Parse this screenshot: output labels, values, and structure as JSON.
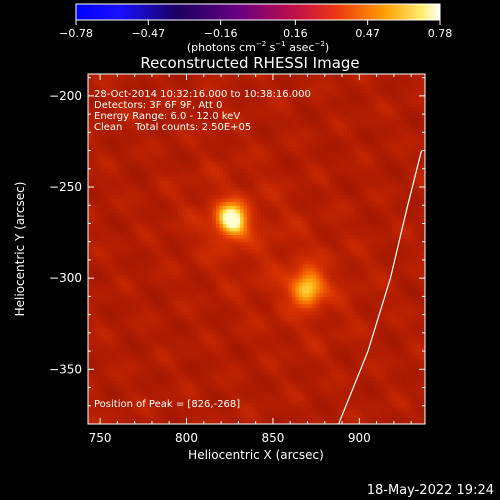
{
  "chart_data": {
    "type": "heatmap",
    "title": "Reconstructed RHESSI Image",
    "xlabel": "Heliocentric X (arcsec)",
    "ylabel": "Heliocentric Y (arcsec)",
    "xlim": [
      743,
      938
    ],
    "ylim": [
      -380,
      -188
    ],
    "x_ticks": [
      750,
      800,
      850,
      900
    ],
    "x_tick_labels": [
      "750",
      "800",
      "850",
      "900"
    ],
    "y_ticks": [
      -200,
      -250,
      -300,
      -350
    ],
    "y_tick_labels": [
      "−200",
      "−250",
      "−300",
      "−350"
    ],
    "colorbar": {
      "ticks": [
        -0.78,
        -0.47,
        -0.16,
        0.16,
        0.47,
        0.78
      ],
      "tick_labels": [
        "−0.78",
        "−0.47",
        "−0.16",
        "0.16",
        "0.47",
        "0.78"
      ],
      "min": -0.78,
      "max": 0.78,
      "unit_main": "(photons cm",
      "unit_sup1": "−2",
      "unit_mid1": " s",
      "unit_sup2": "−1",
      "unit_mid2": " asec",
      "unit_sup3": "−2",
      "unit_end": ")"
    },
    "annotations": {
      "line1": "28-Oct-2014 10:32:16.000 to 10:38:16.000",
      "line2": "Detectors: 3F 6F 9F, Att 0",
      "line3": "Energy Range: 6.0 - 12.0 keV",
      "line4": "Clean    Total counts: 2.50E+05",
      "peak": "Position of Peak = [826,-268]"
    },
    "sources": [
      {
        "x": 826,
        "y": -268,
        "peak": 0.78
      },
      {
        "x": 870,
        "y": -305,
        "peak": 0.62
      }
    ],
    "limb_curve": [
      [
        888,
        -380
      ],
      [
        905,
        -340
      ],
      [
        918,
        -300
      ],
      [
        928,
        -260
      ],
      [
        936,
        -230
      ]
    ],
    "background_level": 0.22,
    "colors": {
      "background": "#000000",
      "axis": "#ffffff",
      "limb": "#ffffff"
    }
  },
  "footer": {
    "timestamp": "18-May-2022 19:24"
  }
}
